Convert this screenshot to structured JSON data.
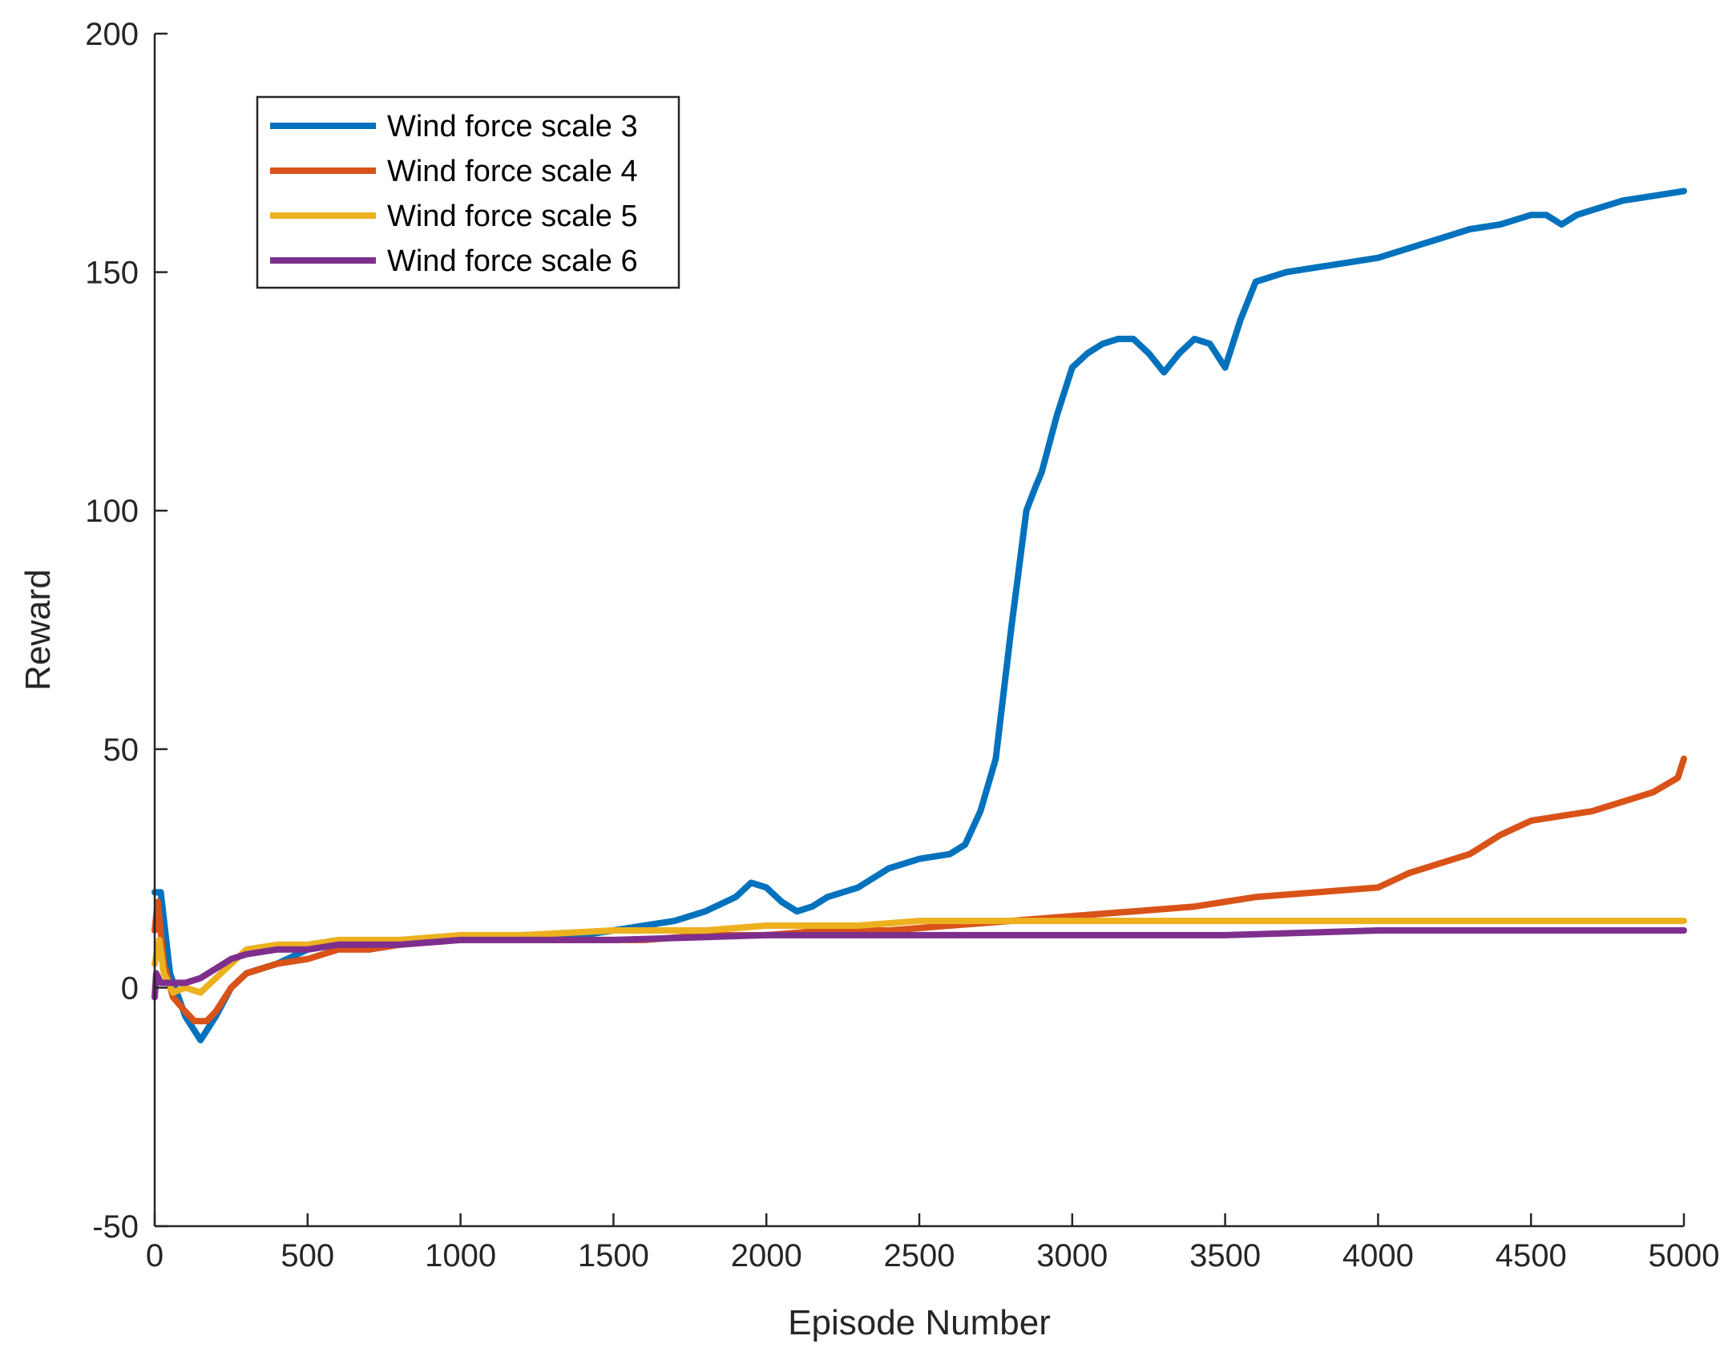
{
  "chart_data": {
    "type": "line",
    "xlabel": "Episode Number",
    "ylabel": "Reward",
    "xlim": [
      0,
      5000
    ],
    "ylim": [
      -50,
      200
    ],
    "xticks": [
      0,
      500,
      1000,
      1500,
      2000,
      2500,
      3000,
      3500,
      4000,
      4500,
      5000
    ],
    "yticks": [
      -50,
      0,
      50,
      100,
      150,
      200
    ],
    "xtick_labels": [
      "0",
      "500",
      "1000",
      "1500",
      "2000",
      "2500",
      "3000",
      "3500",
      "4000",
      "4500",
      "5000"
    ],
    "ytick_labels": [
      "-50",
      "0",
      "50",
      "100",
      "150",
      "200"
    ],
    "grid": false,
    "legend_position": "top-left",
    "series": [
      {
        "name": "Wind force scale 3",
        "color": "#0072BD",
        "x": [
          0,
          20,
          50,
          100,
          150,
          200,
          250,
          300,
          400,
          500,
          600,
          700,
          800,
          900,
          1000,
          1200,
          1400,
          1500,
          1600,
          1700,
          1800,
          1900,
          1950,
          2000,
          2050,
          2100,
          2150,
          2200,
          2300,
          2400,
          2500,
          2600,
          2650,
          2700,
          2750,
          2800,
          2850,
          2880,
          2900,
          2950,
          3000,
          3050,
          3100,
          3150,
          3200,
          3250,
          3300,
          3350,
          3400,
          3450,
          3500,
          3550,
          3600,
          3700,
          3800,
          3900,
          4000,
          4100,
          4200,
          4300,
          4400,
          4500,
          4550,
          4600,
          4650,
          4700,
          4800,
          4900,
          5000
        ],
        "y": [
          20,
          20,
          3,
          -6,
          -11,
          -6,
          0,
          3,
          5,
          8,
          9,
          8,
          9,
          10,
          10,
          10,
          11,
          12,
          13,
          14,
          16,
          19,
          22,
          21,
          18,
          16,
          17,
          19,
          21,
          25,
          27,
          28,
          30,
          37,
          48,
          75,
          100,
          105,
          108,
          120,
          130,
          133,
          135,
          136,
          136,
          133,
          129,
          133,
          136,
          135,
          130,
          140,
          148,
          150,
          151,
          152,
          153,
          155,
          157,
          159,
          160,
          162,
          162,
          160,
          162,
          163,
          165,
          166,
          167
        ]
      },
      {
        "name": "Wind force scale 4",
        "color": "#D95319",
        "x": [
          0,
          10,
          30,
          60,
          100,
          130,
          170,
          200,
          250,
          300,
          400,
          500,
          600,
          700,
          800,
          1000,
          1200,
          1400,
          1600,
          1800,
          2000,
          2200,
          2400,
          2600,
          2800,
          3000,
          3200,
          3400,
          3600,
          3800,
          4000,
          4100,
          4200,
          4300,
          4400,
          4500,
          4600,
          4700,
          4800,
          4900,
          4980,
          5000
        ],
        "y": [
          12,
          18,
          5,
          -2,
          -5,
          -7,
          -7,
          -5,
          0,
          3,
          5,
          6,
          8,
          8,
          9,
          10,
          10,
          10,
          10,
          11,
          11,
          12,
          12,
          13,
          14,
          15,
          16,
          17,
          19,
          20,
          21,
          24,
          26,
          28,
          32,
          35,
          36,
          37,
          39,
          41,
          44,
          48
        ]
      },
      {
        "name": "Wind force scale 5",
        "color": "#EDB120",
        "x": [
          0,
          15,
          30,
          60,
          100,
          150,
          200,
          250,
          300,
          400,
          500,
          600,
          700,
          800,
          1000,
          1200,
          1500,
          1800,
          2000,
          2300,
          2500,
          2800,
          3000,
          3500,
          4000,
          4500,
          5000
        ],
        "y": [
          5,
          10,
          3,
          -1,
          0,
          -1,
          2,
          5,
          8,
          9,
          9,
          10,
          10,
          10,
          11,
          11,
          12,
          12,
          13,
          13,
          14,
          14,
          14,
          14,
          14,
          14,
          14
        ]
      },
      {
        "name": "Wind force scale 6",
        "color": "#7E2F8E",
        "x": [
          0,
          5,
          20,
          50,
          100,
          150,
          200,
          250,
          300,
          400,
          500,
          600,
          800,
          1000,
          1500,
          2000,
          2500,
          3000,
          3500,
          4000,
          4500,
          5000
        ],
        "y": [
          -2,
          3,
          1,
          1,
          1,
          2,
          4,
          6,
          7,
          8,
          8,
          9,
          9,
          10,
          10,
          11,
          11,
          11,
          11,
          12,
          12,
          12
        ]
      }
    ]
  }
}
